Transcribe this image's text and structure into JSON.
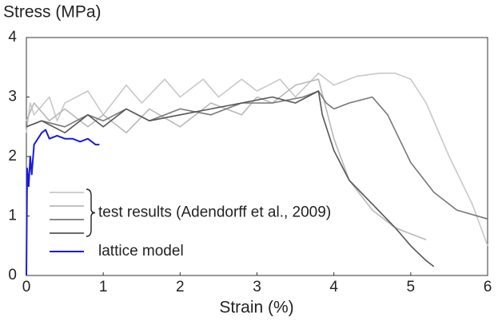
{
  "chart_data": {
    "type": "line",
    "title": "Stress (MPa)",
    "x_label": "Strain (%)",
    "xlim": [
      0,
      6
    ],
    "xticks": [
      0,
      1,
      2,
      3,
      4,
      5,
      6
    ],
    "ylim": [
      0,
      4
    ],
    "yticks": [
      0,
      1,
      2,
      3,
      4
    ],
    "grid": false,
    "series": [
      {
        "name": "test results (Adendorff et al., 2009)",
        "lines": [
          {
            "color": "#c8c8c8",
            "x": [
              0,
              0.05,
              0.1,
              0.3,
              0.4,
              0.5,
              0.8,
              1,
              1.3,
              1.5,
              1.8,
              2,
              2.3,
              2.5,
              2.8,
              3,
              3.3,
              3.5,
              3.8,
              4,
              4.3,
              4.6,
              4.8,
              5,
              5.2,
              5.5,
              5.8,
              6
            ],
            "values": [
              2.4,
              2.9,
              2.7,
              3.0,
              2.6,
              2.9,
              3.1,
              2.7,
              3.2,
              2.9,
              3.3,
              3.0,
              3.3,
              3.0,
              3.3,
              3.1,
              3.3,
              3.0,
              3.4,
              3.2,
              3.35,
              3.4,
              3.4,
              3.3,
              2.9,
              2.0,
              1.2,
              0.5
            ]
          },
          {
            "color": "#b8b8b8",
            "x": [
              0,
              0.1,
              0.3,
              0.5,
              0.8,
              1,
              1.3,
              1.6,
              2,
              2.4,
              2.8,
              3,
              3.2,
              3.5,
              3.8,
              3.9,
              4,
              4.2,
              4.5,
              4.8,
              5,
              5.2
            ],
            "values": [
              2.6,
              2.9,
              2.6,
              2.8,
              2.5,
              2.7,
              2.4,
              2.8,
              2.5,
              2.9,
              2.7,
              3.0,
              2.9,
              3.2,
              3.3,
              2.8,
              2.3,
              1.6,
              1.1,
              0.8,
              0.7,
              0.6
            ]
          },
          {
            "color": "#777777",
            "x": [
              0,
              0.2,
              0.5,
              0.8,
              1,
              1.3,
              1.6,
              2,
              2.4,
              2.8,
              3.2,
              3.6,
              3.8,
              3.9,
              4,
              4.2,
              4.5,
              4.7,
              5,
              5.3,
              5.6,
              6
            ],
            "values": [
              2.5,
              2.6,
              2.5,
              2.7,
              2.6,
              2.8,
              2.6,
              2.8,
              2.7,
              2.9,
              2.9,
              3.0,
              3.1,
              2.9,
              2.8,
              2.9,
              3.0,
              2.7,
              1.9,
              1.4,
              1.1,
              0.95
            ]
          },
          {
            "color": "#555555",
            "x": [
              0,
              0.2,
              0.5,
              0.8,
              1,
              1.3,
              1.6,
              2,
              2.4,
              2.8,
              3.2,
              3.5,
              3.8,
              3.85,
              4,
              4.2,
              4.5,
              4.8,
              5,
              5.2,
              5.3
            ],
            "values": [
              2.5,
              2.6,
              2.4,
              2.7,
              2.5,
              2.8,
              2.6,
              2.7,
              2.8,
              2.9,
              3.0,
              2.9,
              3.1,
              2.7,
              2.1,
              1.6,
              1.2,
              0.8,
              0.5,
              0.25,
              0.15
            ]
          }
        ]
      },
      {
        "name": "lattice model",
        "color": "#1a1adc",
        "x": [
          0,
          0.01,
          0.03,
          0.05,
          0.07,
          0.1,
          0.15,
          0.2,
          0.25,
          0.3,
          0.4,
          0.5,
          0.6,
          0.7,
          0.8,
          0.9,
          0.95
        ],
        "values": [
          0,
          1.8,
          1.5,
          2.0,
          1.7,
          2.2,
          2.3,
          2.4,
          2.45,
          2.3,
          2.35,
          2.3,
          2.3,
          2.25,
          2.3,
          2.2,
          2.2
        ]
      }
    ]
  }
}
